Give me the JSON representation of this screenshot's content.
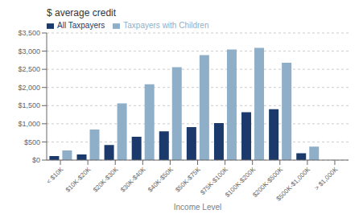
{
  "chart_data": {
    "type": "bar",
    "title": "$ average credit",
    "xlabel": "Income Level",
    "categories": [
      "< $10K",
      "$10K-$20K",
      "$20K-$30K",
      "$30K-$40K",
      "$40K-$50K",
      "$50K-$75K",
      "$75K-$100K",
      "$100K-$200K",
      "$200K-$500K",
      "$500K-$1,000K",
      "> $1,000K"
    ],
    "series": [
      {
        "name": "All Taxpayers",
        "color": "#1B3A6B",
        "values": [
          110,
          155,
          415,
          640,
          790,
          910,
          1020,
          1320,
          1400,
          190,
          0
        ]
      },
      {
        "name": "Taxpayers with Children",
        "color": "#8FAFC8",
        "values": [
          265,
          840,
          1560,
          2090,
          2560,
          2890,
          3045,
          3090,
          2680,
          370,
          0
        ]
      }
    ],
    "ylim": [
      0,
      3500
    ],
    "yticks": [
      {
        "value": 0,
        "label": "$0"
      },
      {
        "value": 500,
        "label": "$500"
      },
      {
        "value": 1000,
        "label": "$1,000"
      },
      {
        "value": 1500,
        "label": "$1,500"
      },
      {
        "value": 2000,
        "label": "$2,000"
      },
      {
        "value": 2500,
        "label": "$2,500"
      },
      {
        "value": 3000,
        "label": "$3,000"
      },
      {
        "value": 3500,
        "label": "$3,500"
      }
    ],
    "grid": true,
    "legend": "upper left"
  }
}
